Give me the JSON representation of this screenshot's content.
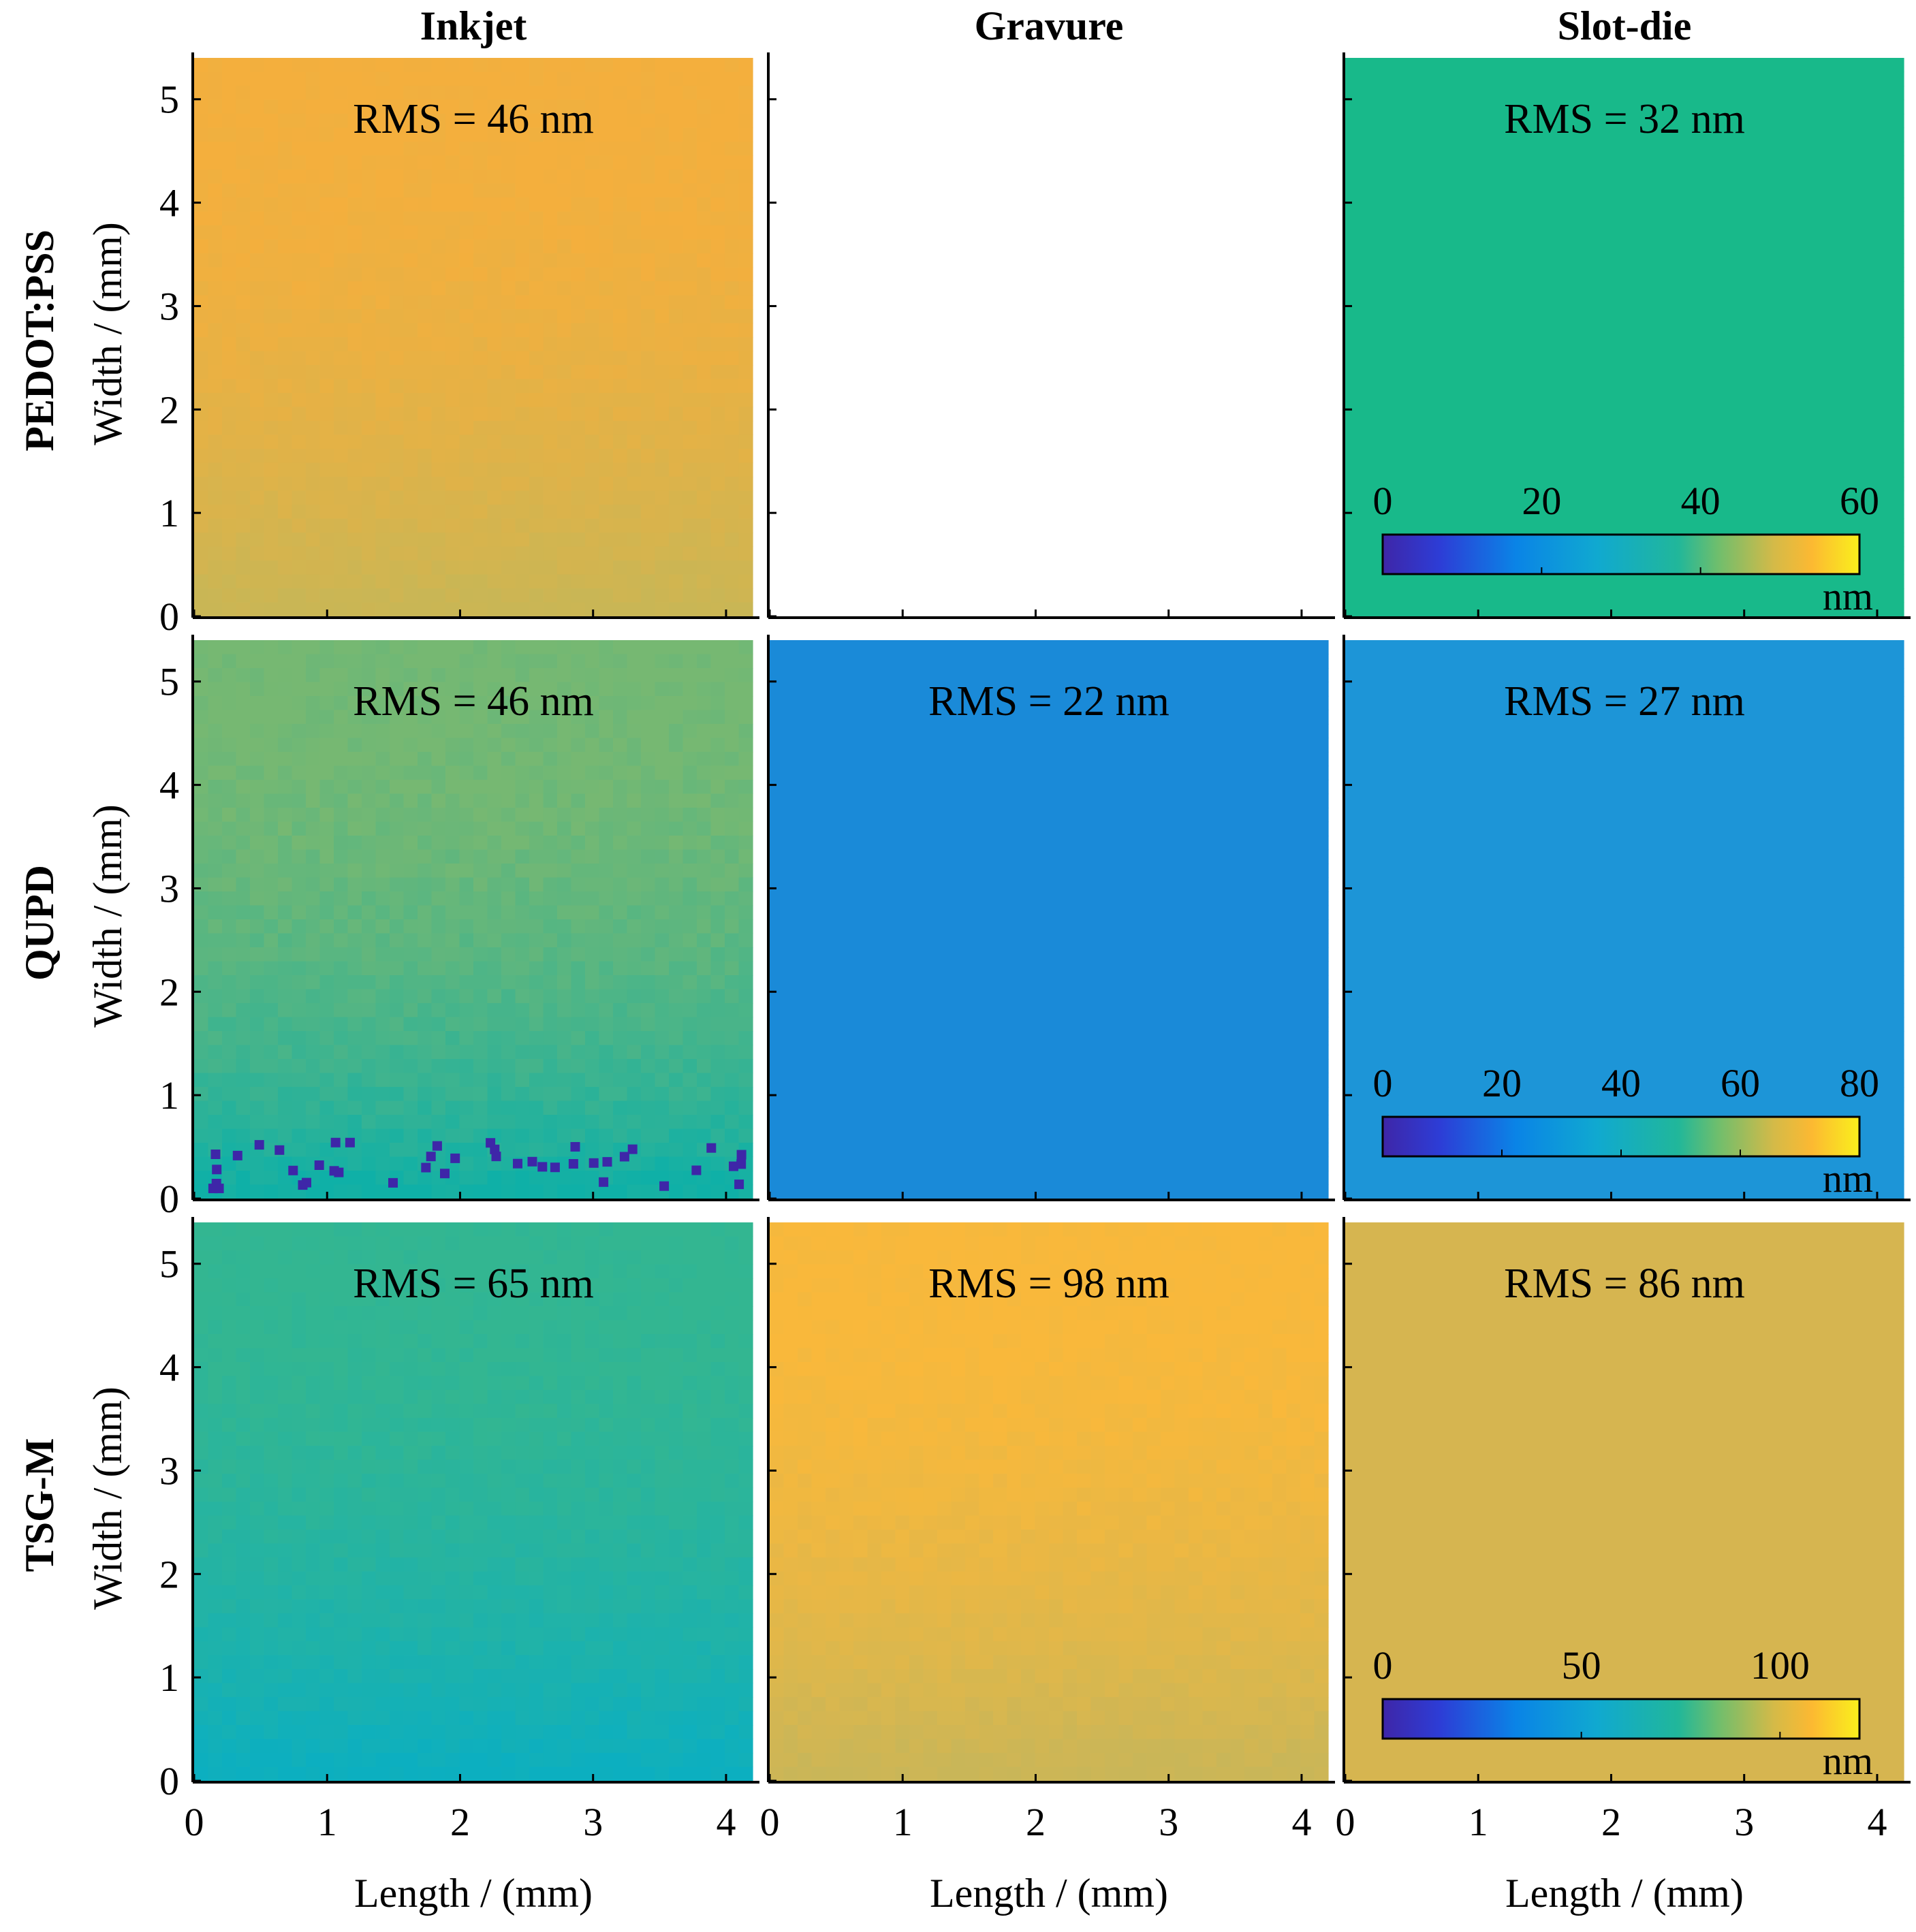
{
  "columns": [
    "Inkjet",
    "Gravure",
    "Slot-die"
  ],
  "rows": [
    "PEDOT:PSS",
    "QUPD",
    "TSG-M"
  ],
  "xlabel": "Length / (mm)",
  "ylabel": "Width / (mm)",
  "x_ticks": [
    "0",
    "1",
    "2",
    "3",
    "4"
  ],
  "y_ticks": [
    "0",
    "1",
    "2",
    "3",
    "4",
    "5"
  ],
  "colormap": [
    "#3e26a8",
    "#0072e0",
    "#00a9c9",
    "#1ab58a",
    "#9ec05a",
    "#fbb23b",
    "#f9e51e"
  ],
  "chart_data": {
    "type": "heatmap",
    "xlim": [
      0,
      4.2
    ],
    "ylim": [
      0,
      5.4
    ],
    "panels": [
      {
        "row": "PEDOT:PSS",
        "column": "Inkjet",
        "rms": "RMS = 46 nm",
        "base": "#f4af3d",
        "bottom": "#c9b655",
        "specks": false
      },
      {
        "row": "PEDOT:PSS",
        "column": "Gravure",
        "empty": true
      },
      {
        "row": "PEDOT:PSS",
        "column": "Slot-die",
        "rms": "RMS = 32 nm",
        "base": "#18b98a",
        "bottom": "#18b98a",
        "specks": false
      },
      {
        "row": "QUPD",
        "column": "Inkjet",
        "rms": "RMS = 46 nm",
        "base": "#76b872",
        "bottom": "#0fb0a7",
        "specks": true
      },
      {
        "row": "QUPD",
        "column": "Gravure",
        "rms": "RMS = 22 nm",
        "base": "#1a8ad8",
        "bottom": "#1a8ad8",
        "specks": false
      },
      {
        "row": "QUPD",
        "column": "Slot-die",
        "rms": "RMS = 27 nm",
        "base": "#1d95d7",
        "bottom": "#1d95d7",
        "specks": false
      },
      {
        "row": "TSG-M",
        "column": "Inkjet",
        "rms": "RMS = 65 nm",
        "base": "#33b691",
        "bottom": "#0cafc0",
        "specks": false
      },
      {
        "row": "TSG-M",
        "column": "Gravure",
        "rms": "RMS = 98 nm",
        "base": "#f9b83b",
        "bottom": "#c9b658",
        "specks": false
      },
      {
        "row": "TSG-M",
        "column": "Slot-die",
        "rms": "RMS = 86 nm",
        "base": "#d6b550",
        "bottom": "#d6b550",
        "specks": false
      }
    ],
    "colorbars": [
      {
        "row": "PEDOT:PSS",
        "ticks": [
          "0",
          "20",
          "40",
          "60"
        ],
        "range": [
          0,
          60
        ],
        "unit": "nm"
      },
      {
        "row": "QUPD",
        "ticks": [
          "0",
          "20",
          "40",
          "60",
          "80"
        ],
        "range": [
          0,
          80
        ],
        "unit": "nm"
      },
      {
        "row": "TSG-M",
        "ticks": [
          "0",
          "50",
          "100"
        ],
        "range": [
          0,
          120
        ],
        "unit": "nm"
      }
    ]
  }
}
